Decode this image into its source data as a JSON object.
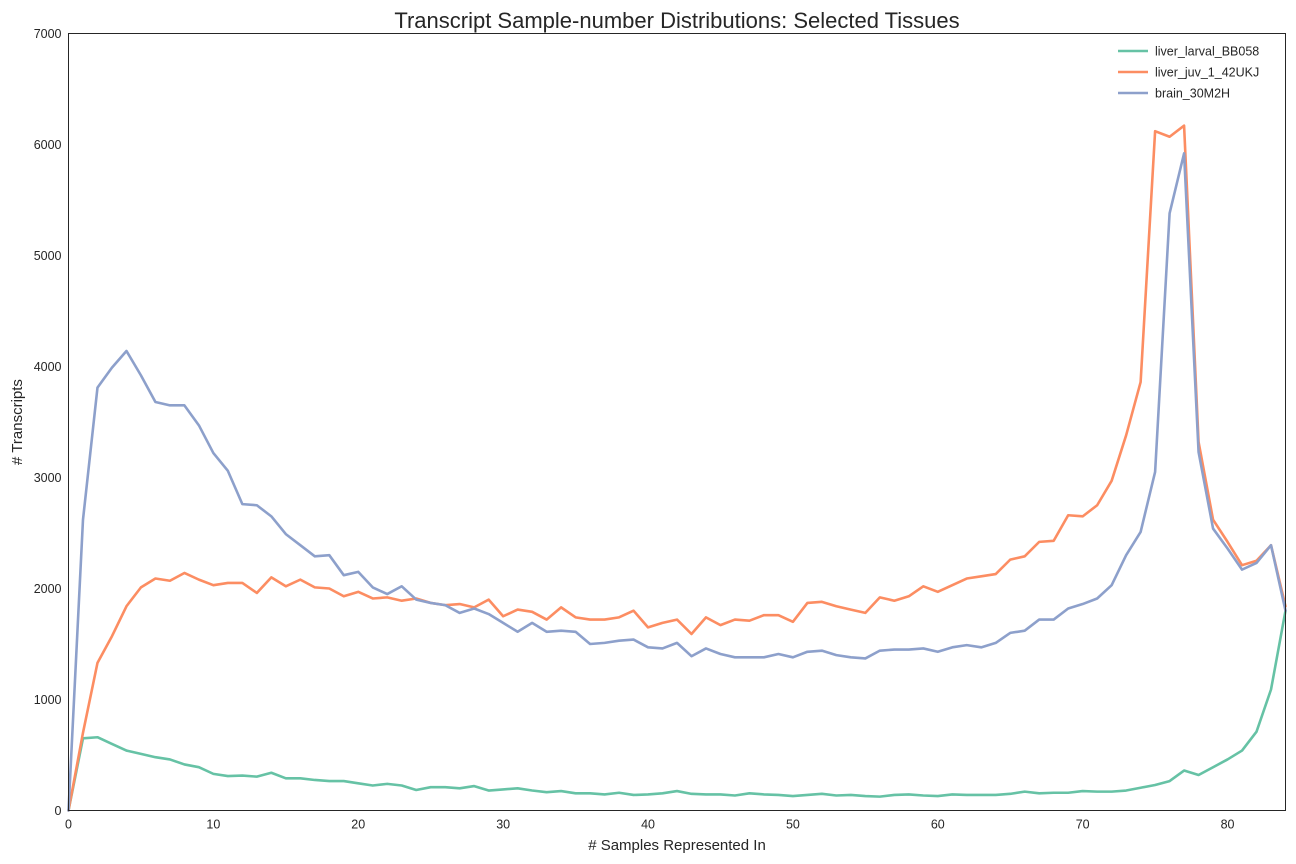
{
  "chart_data": {
    "type": "line",
    "title": "Transcript Sample-number Distributions: Selected Tissues",
    "xlabel": "# Samples Represented In",
    "ylabel": "# Transcripts",
    "xlim": [
      0,
      84
    ],
    "ylim": [
      0,
      7000
    ],
    "xticks": [
      "0",
      "10",
      "20",
      "30",
      "40",
      "50",
      "60",
      "70",
      "80"
    ],
    "yticks": [
      "0",
      "1000",
      "2000",
      "3000",
      "4000",
      "5000",
      "6000",
      "7000"
    ],
    "grid": false,
    "legend_position": "top-right",
    "x": [
      0,
      1,
      2,
      3,
      4,
      5,
      6,
      7,
      8,
      9,
      10,
      11,
      12,
      13,
      14,
      15,
      16,
      17,
      18,
      19,
      20,
      21,
      22,
      23,
      24,
      25,
      26,
      27,
      28,
      29,
      30,
      31,
      32,
      33,
      34,
      35,
      36,
      37,
      38,
      39,
      40,
      41,
      42,
      43,
      44,
      45,
      46,
      47,
      48,
      49,
      50,
      51,
      52,
      53,
      54,
      55,
      56,
      57,
      58,
      59,
      60,
      61,
      62,
      63,
      64,
      65,
      66,
      67,
      68,
      69,
      70,
      71,
      72,
      73,
      74,
      75,
      76,
      77,
      78,
      79,
      80,
      81,
      82,
      83,
      84
    ],
    "series": [
      {
        "name": "liver_larval_BB058",
        "color": "#66c2a5",
        "values": [
          0,
          650,
          660,
          600,
          540,
          510,
          480,
          460,
          415,
          390,
          330,
          310,
          315,
          305,
          340,
          290,
          290,
          275,
          265,
          265,
          245,
          225,
          240,
          225,
          185,
          210,
          210,
          200,
          220,
          180,
          190,
          200,
          180,
          165,
          175,
          155,
          155,
          145,
          160,
          140,
          145,
          155,
          175,
          150,
          145,
          145,
          135,
          155,
          145,
          140,
          130,
          140,
          150,
          135,
          140,
          130,
          125,
          140,
          145,
          135,
          130,
          145,
          140,
          140,
          140,
          150,
          170,
          155,
          160,
          160,
          175,
          170,
          170,
          180,
          205,
          230,
          265,
          360,
          320,
          390,
          460,
          540,
          710,
          1090,
          1800
        ]
      },
      {
        "name": "liver_juv_1_42UKJ",
        "color": "#fc8d62",
        "values": [
          0,
          700,
          1330,
          1570,
          1840,
          2010,
          2090,
          2070,
          2140,
          2080,
          2030,
          2050,
          2050,
          1960,
          2100,
          2020,
          2080,
          2010,
          2000,
          1930,
          1970,
          1910,
          1920,
          1890,
          1910,
          1870,
          1850,
          1860,
          1830,
          1900,
          1750,
          1810,
          1790,
          1720,
          1830,
          1740,
          1720,
          1720,
          1740,
          1800,
          1650,
          1690,
          1720,
          1590,
          1740,
          1670,
          1720,
          1710,
          1760,
          1760,
          1700,
          1870,
          1880,
          1840,
          1810,
          1780,
          1920,
          1890,
          1930,
          2020,
          1970,
          2030,
          2090,
          2110,
          2130,
          2260,
          2290,
          2420,
          2430,
          2660,
          2650,
          2750,
          2970,
          3380,
          3860,
          6120,
          6070,
          6170,
          3320,
          2620,
          2420,
          2210,
          2250,
          2390,
          1840
        ]
      },
      {
        "name": "brain_30M2H",
        "color": "#8da0cb",
        "values": [
          0,
          2620,
          3810,
          3990,
          4140,
          3920,
          3680,
          3650,
          3650,
          3470,
          3220,
          3060,
          2760,
          2750,
          2650,
          2490,
          2390,
          2290,
          2300,
          2120,
          2150,
          2010,
          1950,
          2020,
          1900,
          1870,
          1850,
          1780,
          1820,
          1770,
          1690,
          1610,
          1690,
          1610,
          1620,
          1610,
          1500,
          1510,
          1530,
          1540,
          1470,
          1460,
          1510,
          1390,
          1460,
          1410,
          1380,
          1380,
          1380,
          1410,
          1380,
          1430,
          1440,
          1400,
          1380,
          1370,
          1440,
          1450,
          1450,
          1460,
          1430,
          1470,
          1490,
          1470,
          1510,
          1600,
          1620,
          1720,
          1720,
          1820,
          1860,
          1910,
          2030,
          2300,
          2510,
          3050,
          5380,
          5920,
          3230,
          2540,
          2360,
          2170,
          2230,
          2390,
          1800
        ]
      }
    ]
  }
}
